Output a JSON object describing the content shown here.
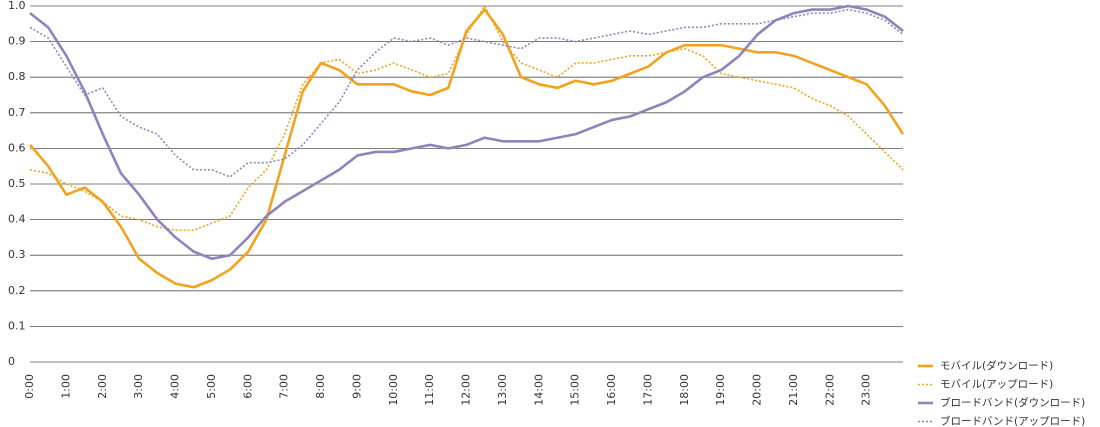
{
  "chart_data": {
    "type": "line",
    "x": [
      0,
      0.5,
      1,
      1.5,
      2,
      2.5,
      3,
      3.5,
      4,
      4.5,
      5,
      5.5,
      6,
      6.5,
      7,
      7.5,
      8,
      8.5,
      9,
      9.5,
      10,
      10.5,
      11,
      11.5,
      12,
      12.5,
      13,
      13.5,
      14,
      14.5,
      15,
      15.5,
      16,
      16.5,
      17,
      17.5,
      18,
      18.5,
      19,
      19.5,
      20,
      20.5,
      21,
      21.5,
      22,
      22.5,
      23,
      23.5,
      24
    ],
    "series": [
      {
        "name": "モバイル(ダウンロード)",
        "color": "#f3a21d",
        "dash": "solid",
        "values": [
          0.61,
          0.55,
          0.47,
          0.49,
          0.45,
          0.38,
          0.29,
          0.25,
          0.22,
          0.21,
          0.23,
          0.26,
          0.31,
          0.4,
          0.58,
          0.76,
          0.84,
          0.82,
          0.78,
          0.78,
          0.78,
          0.76,
          0.75,
          0.77,
          0.93,
          0.99,
          0.92,
          0.8,
          0.78,
          0.77,
          0.79,
          0.78,
          0.79,
          0.81,
          0.83,
          0.87,
          0.89,
          0.89,
          0.89,
          0.88,
          0.87,
          0.87,
          0.86,
          0.84,
          0.82,
          0.8,
          0.78,
          0.72,
          0.64
        ]
      },
      {
        "name": "モバイル(アップロード)",
        "color": "#f3a21d",
        "dash": "dotted",
        "values": [
          0.54,
          0.53,
          0.5,
          0.48,
          0.45,
          0.41,
          0.4,
          0.38,
          0.37,
          0.37,
          0.39,
          0.41,
          0.49,
          0.54,
          0.64,
          0.78,
          0.84,
          0.85,
          0.81,
          0.82,
          0.84,
          0.82,
          0.8,
          0.81,
          0.92,
          1.0,
          0.9,
          0.84,
          0.82,
          0.8,
          0.84,
          0.84,
          0.85,
          0.86,
          0.86,
          0.87,
          0.88,
          0.86,
          0.81,
          0.8,
          0.79,
          0.78,
          0.77,
          0.74,
          0.72,
          0.69,
          0.64,
          0.59,
          0.54
        ]
      },
      {
        "name": "ブロードバンド(ダウンロード)",
        "color": "#8f83bf",
        "dash": "solid",
        "values": [
          0.98,
          0.94,
          0.86,
          0.76,
          0.64,
          0.53,
          0.47,
          0.4,
          0.35,
          0.31,
          0.29,
          0.3,
          0.35,
          0.41,
          0.45,
          0.48,
          0.51,
          0.54,
          0.58,
          0.59,
          0.59,
          0.6,
          0.61,
          0.6,
          0.61,
          0.63,
          0.62,
          0.62,
          0.62,
          0.63,
          0.64,
          0.66,
          0.68,
          0.69,
          0.71,
          0.73,
          0.76,
          0.8,
          0.82,
          0.86,
          0.92,
          0.96,
          0.98,
          0.99,
          0.99,
          1.0,
          0.99,
          0.97,
          0.93
        ]
      },
      {
        "name": "ブロードバンド(アップロード)",
        "color": "#8f83bf",
        "dash": "dotted",
        "values": [
          0.94,
          0.91,
          0.83,
          0.75,
          0.77,
          0.69,
          0.66,
          0.64,
          0.58,
          0.54,
          0.54,
          0.52,
          0.56,
          0.56,
          0.57,
          0.61,
          0.67,
          0.73,
          0.82,
          0.87,
          0.91,
          0.9,
          0.91,
          0.89,
          0.91,
          0.9,
          0.89,
          0.88,
          0.91,
          0.91,
          0.9,
          0.91,
          0.92,
          0.93,
          0.92,
          0.93,
          0.94,
          0.94,
          0.95,
          0.95,
          0.95,
          0.96,
          0.97,
          0.98,
          0.98,
          0.99,
          0.98,
          0.96,
          0.92
        ]
      }
    ],
    "xlim": [
      0,
      24
    ],
    "xticks": [
      {
        "value": 0,
        "label": "0:00"
      },
      {
        "value": 1,
        "label": "1:00"
      },
      {
        "value": 2,
        "label": "2:00"
      },
      {
        "value": 3,
        "label": "3:00"
      },
      {
        "value": 4,
        "label": "4:00"
      },
      {
        "value": 5,
        "label": "5:00"
      },
      {
        "value": 6,
        "label": "6:00"
      },
      {
        "value": 7,
        "label": "7:00"
      },
      {
        "value": 8,
        "label": "8:00"
      },
      {
        "value": 9,
        "label": "9:00"
      },
      {
        "value": 10,
        "label": "10:00"
      },
      {
        "value": 11,
        "label": "11:00"
      },
      {
        "value": 12,
        "label": "12:00"
      },
      {
        "value": 13,
        "label": "13:00"
      },
      {
        "value": 14,
        "label": "14:00"
      },
      {
        "value": 15,
        "label": "15:00"
      },
      {
        "value": 16,
        "label": "16:00"
      },
      {
        "value": 17,
        "label": "17:00"
      },
      {
        "value": 18,
        "label": "18:00"
      },
      {
        "value": 19,
        "label": "19:00"
      },
      {
        "value": 20,
        "label": "20:00"
      },
      {
        "value": 21,
        "label": "21:00"
      },
      {
        "value": 22,
        "label": "22:00"
      },
      {
        "value": 23,
        "label": "23:00"
      }
    ],
    "ylim": [
      0,
      1
    ],
    "yticks": [
      0,
      0.1,
      0.2,
      0.3,
      0.4,
      0.5,
      0.6,
      0.7,
      0.8,
      0.9,
      {
        "value": 1,
        "label": "1.0"
      }
    ],
    "grid": true,
    "legend": "bottom-right"
  }
}
